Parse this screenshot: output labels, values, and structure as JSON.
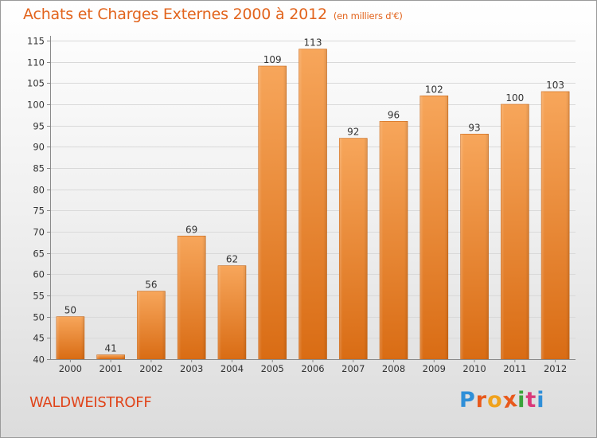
{
  "title": "Achats et Charges Externes 2000 à 2012",
  "subtitle": "(en milliers d'€)",
  "commune": "WALDWEISTROFF",
  "logo": {
    "letters": [
      "P",
      "r",
      "o",
      "x",
      "i",
      "t",
      "i"
    ],
    "name": "Proxiti"
  },
  "colors": {
    "bar_light": "#f7a65b",
    "bar_dark": "#d96c14",
    "title": "#e2641d",
    "commune": "#e0441a",
    "grid": "#d9d9d9"
  },
  "chart_data": {
    "type": "bar",
    "title": "Achats et Charges Externes 2000 à 2012",
    "subtitle": "(en milliers d'€)",
    "categories": [
      "2000",
      "2001",
      "2002",
      "2003",
      "2004",
      "2005",
      "2006",
      "2007",
      "2008",
      "2009",
      "2010",
      "2011",
      "2012"
    ],
    "values": [
      50,
      41,
      56,
      69,
      62,
      109,
      113,
      92,
      96,
      102,
      93,
      100,
      103
    ],
    "ylim": [
      40,
      115
    ],
    "yticks": [
      40,
      45,
      50,
      55,
      60,
      65,
      70,
      75,
      80,
      85,
      90,
      95,
      100,
      105,
      110,
      115
    ],
    "grid": true,
    "legend": "none",
    "data_labels": true
  }
}
